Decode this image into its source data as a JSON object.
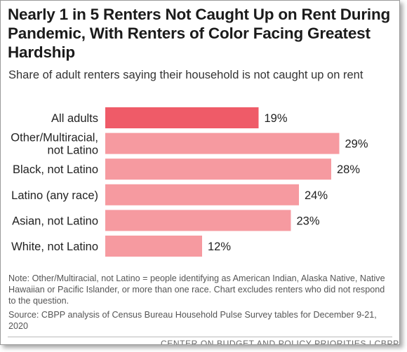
{
  "chart_data": {
    "type": "bar",
    "orientation": "horizontal",
    "title": "Nearly 1 in 5 Renters Not Caught Up on Rent During Pandemic, With Renters of Color Facing Greatest Hardship",
    "subtitle": "Share of adult renters saying their household is not caught up on rent",
    "categories": [
      [
        "All adults"
      ],
      [
        "Other/Multiracial,",
        "not Latino"
      ],
      [
        "Black, not Latino"
      ],
      [
        "Latino (any race)"
      ],
      [
        "Asian, not Latino"
      ],
      [
        "White, not Latino"
      ]
    ],
    "values": [
      19,
      29,
      28,
      24,
      23,
      12
    ],
    "value_labels": [
      "19%",
      "29%",
      "28%",
      "24%",
      "23%",
      "12%"
    ],
    "xlim": [
      0,
      30
    ],
    "grid": false,
    "highlight_color": "#ef5b68",
    "bar_color": "#f69aa0"
  },
  "note": "Note: Other/Multiracial, not Latino = people identifying as American Indian, Alaska Native, Native Hawaiian or Pacific Islander, or more than one race. Chart excludes renters who did not respond to the question.",
  "source": "Source: CBPP analysis of Census Bureau Household Pulse Survey tables for December 9-21, 2020",
  "footer": "CENTER ON BUDGET AND POLICY PRIORITIES | CBPP.ORG"
}
